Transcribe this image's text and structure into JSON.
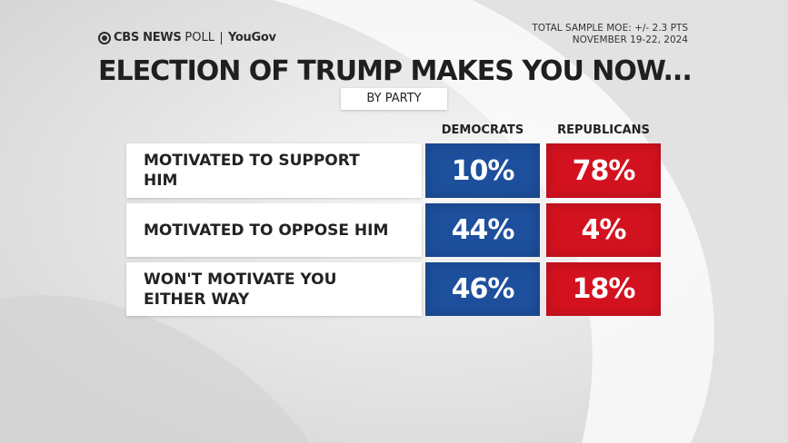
{
  "brand": {
    "network": "CBS NEWS",
    "poll": "POLL",
    "partner": "YouGov"
  },
  "meta": {
    "moe": "TOTAL SAMPLE MOE: +/- 2.3 PTS",
    "dates": "NOVEMBER 19-22, 2024"
  },
  "colors": {
    "democrats": "#1d4f9c",
    "republicans": "#d3121f",
    "label_bg": "#ffffff",
    "background": "#e4e4e4"
  },
  "chart_data": {
    "type": "table",
    "title": "ELECTION OF TRUMP MAKES YOU NOW...",
    "subtitle": "BY PARTY",
    "columns": [
      "DEMOCRATS",
      "REPUBLICANS"
    ],
    "rows": [
      {
        "label_lines": [
          "MOTIVATED TO SUPPORT",
          "HIM"
        ],
        "values": [
          "10%",
          "78%"
        ]
      },
      {
        "label_lines": [
          "MOTIVATED TO OPPOSE HIM"
        ],
        "values": [
          "44%",
          "4%"
        ]
      },
      {
        "label_lines": [
          "WON'T MOTIVATE YOU",
          "EITHER WAY"
        ],
        "values": [
          "46%",
          "18%"
        ]
      }
    ]
  }
}
